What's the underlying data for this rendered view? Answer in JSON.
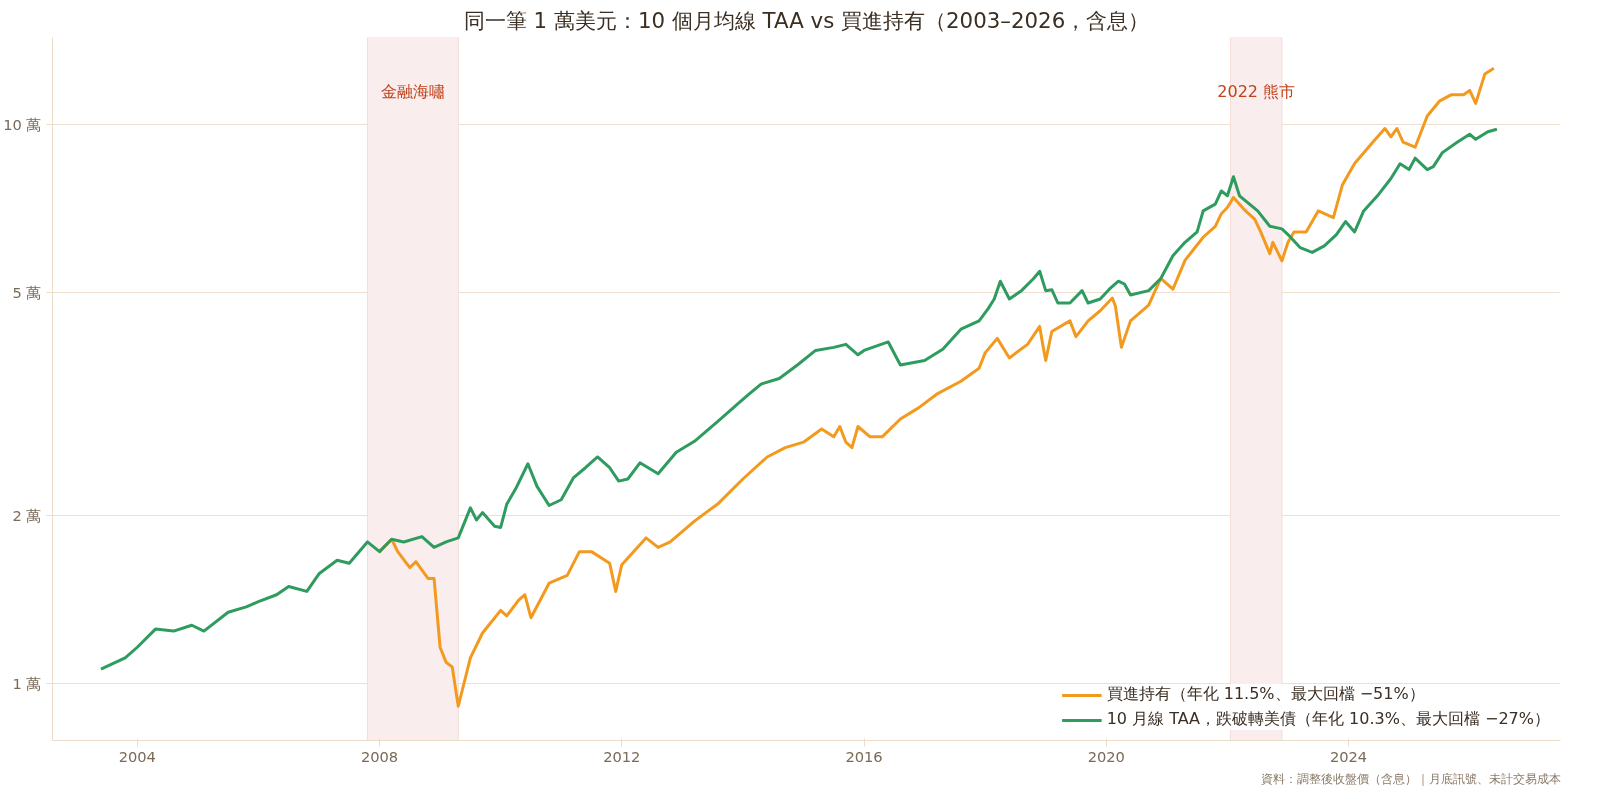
{
  "chart_data": {
    "type": "line",
    "title": "同一筆 1 萬美元：10 個月均線 TAA vs 買進持有（2003–2026，含息）",
    "annotations": [
      "資料：調整後收盤價（含息）｜月底訊號、未計交易成本"
    ],
    "log": "y",
    "grid": "y",
    "legend": "bottom right",
    "xlim": [
      2002.6,
      2027.5
    ],
    "xticks": [
      2004,
      2008,
      2012,
      2016,
      2020,
      2024
    ],
    "ylim": [
      0.79,
      14.3
    ],
    "yticks": [
      {
        "value": 1,
        "label": "1 萬"
      },
      {
        "value": 2,
        "label": "2 萬"
      },
      {
        "value": 5,
        "label": "5 萬"
      },
      {
        "value": 10,
        "label": "10 萬"
      }
    ],
    "bands": [
      {
        "axis": "x",
        "from": 2007.8,
        "to": 2009.3,
        "label": "金融海嘯",
        "color": "#f9eded"
      },
      {
        "axis": "x",
        "from": 2022.05,
        "to": 2022.9,
        "label": "2022 熊市",
        "color": "#f9eded"
      }
    ],
    "series": [
      {
        "name": "買進持有（年化 11.5%、最大回檔 −51%）",
        "color": "#f39a1e",
        "x": [
          2008.0,
          2008.2,
          2008.3,
          2008.5,
          2008.6,
          2008.8,
          2008.9,
          2009.0,
          2009.1,
          2009.2,
          2009.3,
          2009.5,
          2009.7,
          2010.0,
          2010.1,
          2010.3,
          2010.4,
          2010.5,
          2010.8,
          2011.1,
          2011.3,
          2011.5,
          2011.8,
          2011.9,
          2012.0,
          2012.4,
          2012.6,
          2012.8,
          2013.2,
          2013.6,
          2014.0,
          2014.4,
          2014.7,
          2015.0,
          2015.3,
          2015.5,
          2015.6,
          2015.7,
          2015.8,
          2015.9,
          2016.1,
          2016.3,
          2016.6,
          2016.9,
          2017.2,
          2017.6,
          2017.9,
          2018.0,
          2018.2,
          2018.4,
          2018.7,
          2018.9,
          2018.95,
          2019.0,
          2019.1,
          2019.4,
          2019.5,
          2019.7,
          2019.9,
          2020.1,
          2020.15,
          2020.25,
          2020.4,
          2020.7,
          2020.9,
          2021.1,
          2021.3,
          2021.6,
          2021.8,
          2021.9,
          2022.0,
          2022.1,
          2022.3,
          2022.45,
          2022.55,
          2022.7,
          2022.75,
          2022.9,
          2023.0,
          2023.1,
          2023.3,
          2023.5,
          2023.75,
          2023.9,
          2024.1,
          2024.4,
          2024.6,
          2024.7,
          2024.8,
          2024.9,
          2025.1,
          2025.3,
          2025.5,
          2025.7,
          2025.9,
          2026.0,
          2026.1,
          2026.25,
          2026.4
        ],
        "values": [
          1.72,
          1.81,
          1.72,
          1.61,
          1.65,
          1.54,
          1.54,
          1.16,
          1.09,
          1.07,
          0.91,
          1.11,
          1.23,
          1.35,
          1.32,
          1.41,
          1.44,
          1.31,
          1.51,
          1.56,
          1.72,
          1.72,
          1.64,
          1.46,
          1.63,
          1.82,
          1.75,
          1.79,
          1.95,
          2.1,
          2.32,
          2.54,
          2.64,
          2.7,
          2.85,
          2.76,
          2.88,
          2.7,
          2.64,
          2.88,
          2.76,
          2.76,
          2.97,
          3.11,
          3.29,
          3.47,
          3.66,
          3.9,
          4.14,
          3.82,
          4.04,
          4.35,
          4.04,
          3.78,
          4.26,
          4.45,
          4.17,
          4.45,
          4.64,
          4.89,
          4.73,
          3.99,
          4.45,
          4.75,
          5.3,
          5.07,
          5.71,
          6.28,
          6.57,
          6.92,
          7.1,
          7.4,
          7.0,
          6.77,
          6.42,
          5.87,
          6.15,
          5.7,
          6.15,
          6.42,
          6.42,
          7.0,
          6.81,
          7.8,
          8.51,
          9.29,
          9.83,
          9.5,
          9.83,
          9.29,
          9.1,
          10.35,
          11.0,
          11.3,
          11.3,
          11.5,
          10.9,
          12.3,
          12.6
        ]
      },
      {
        "name": "10 月線 TAA，跌破轉美債（年化 10.3%、最大回檔 −27%）",
        "color": "#2e9b5f",
        "x": [
          2003.4,
          2003.8,
          2004.0,
          2004.3,
          2004.6,
          2004.9,
          2005.1,
          2005.5,
          2005.8,
          2006.0,
          2006.3,
          2006.5,
          2006.8,
          2007.0,
          2007.3,
          2007.5,
          2007.8,
          2008.0,
          2008.2,
          2008.4,
          2008.7,
          2008.9,
          2009.1,
          2009.3,
          2009.5,
          2009.6,
          2009.7,
          2009.9,
          2010.0,
          2010.1,
          2010.25,
          2010.45,
          2010.6,
          2010.8,
          2011.0,
          2011.2,
          2011.4,
          2011.6,
          2011.8,
          2011.95,
          2012.1,
          2012.3,
          2012.6,
          2012.9,
          2013.2,
          2013.6,
          2013.9,
          2014.1,
          2014.3,
          2014.6,
          2014.9,
          2015.2,
          2015.5,
          2015.7,
          2015.9,
          2016.0,
          2016.4,
          2016.6,
          2017.0,
          2017.3,
          2017.6,
          2017.9,
          2018.05,
          2018.15,
          2018.25,
          2018.4,
          2018.6,
          2018.8,
          2018.9,
          2019.0,
          2019.1,
          2019.2,
          2019.4,
          2019.6,
          2019.7,
          2019.9,
          2020.05,
          2020.2,
          2020.3,
          2020.4,
          2020.7,
          2020.9,
          2021.1,
          2021.3,
          2021.5,
          2021.6,
          2021.8,
          2021.9,
          2022.0,
          2022.1,
          2022.2,
          2022.5,
          2022.7,
          2022.9,
          2023.0,
          2023.2,
          2023.4,
          2023.6,
          2023.8,
          2023.95,
          2024.1,
          2024.25,
          2024.5,
          2024.7,
          2024.85,
          2025.0,
          2025.1,
          2025.3,
          2025.4,
          2025.55,
          2025.8,
          2026.0,
          2026.1,
          2026.3,
          2026.45
        ],
        "values": [
          1.06,
          1.11,
          1.16,
          1.25,
          1.24,
          1.27,
          1.24,
          1.34,
          1.37,
          1.4,
          1.44,
          1.49,
          1.46,
          1.57,
          1.66,
          1.64,
          1.79,
          1.72,
          1.81,
          1.79,
          1.83,
          1.75,
          1.79,
          1.82,
          2.06,
          1.96,
          2.02,
          1.91,
          1.9,
          2.09,
          2.23,
          2.47,
          2.25,
          2.08,
          2.13,
          2.33,
          2.43,
          2.54,
          2.43,
          2.3,
          2.32,
          2.48,
          2.37,
          2.59,
          2.71,
          2.95,
          3.15,
          3.29,
          3.43,
          3.51,
          3.71,
          3.94,
          3.99,
          4.04,
          3.87,
          3.94,
          4.08,
          3.71,
          3.78,
          3.96,
          4.3,
          4.45,
          4.68,
          4.87,
          5.24,
          4.87,
          5.04,
          5.3,
          5.46,
          5.04,
          5.06,
          4.79,
          4.79,
          5.04,
          4.79,
          4.87,
          5.07,
          5.24,
          5.18,
          4.95,
          5.04,
          5.3,
          5.82,
          6.15,
          6.42,
          7.0,
          7.2,
          7.6,
          7.45,
          8.06,
          7.45,
          7.0,
          6.57,
          6.5,
          6.35,
          6.02,
          5.9,
          6.06,
          6.35,
          6.7,
          6.42,
          7.0,
          7.5,
          8.0,
          8.5,
          8.3,
          8.7,
          8.3,
          8.4,
          8.9,
          9.3,
          9.6,
          9.4,
          9.7,
          9.8
        ]
      }
    ]
  }
}
